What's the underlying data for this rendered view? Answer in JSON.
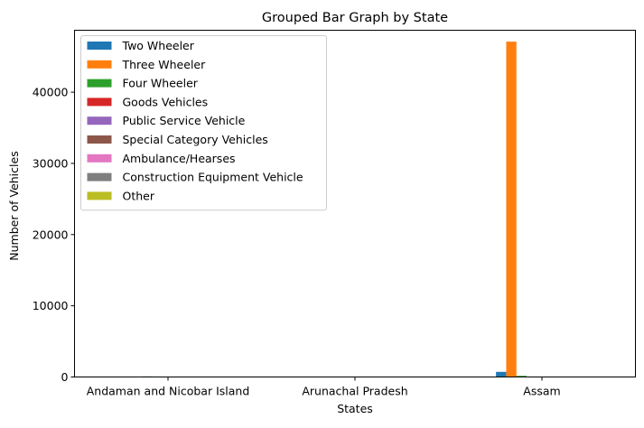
{
  "chart_data": {
    "type": "bar",
    "title": "Grouped Bar Graph by State",
    "xlabel": "States",
    "ylabel": "Number of Vehicles",
    "categories": [
      "Andaman and Nicobar Island",
      "Arunachal Pradesh",
      "Assam"
    ],
    "ylim": [
      0,
      48700
    ],
    "yticks": [
      0,
      10000,
      20000,
      30000,
      40000
    ],
    "legend_position": "top-left",
    "grid": false,
    "series": [
      {
        "name": "Two Wheeler",
        "color": "#1f77b4",
        "values": [
          1,
          14,
          720
        ]
      },
      {
        "name": "Three Wheeler",
        "color": "#ff7f0e",
        "values": [
          30,
          0,
          47100
        ]
      },
      {
        "name": "Four Wheeler",
        "color": "#2ca02c",
        "values": [
          81,
          5,
          161
        ]
      },
      {
        "name": "Goods Vehicles",
        "color": "#d62728",
        "values": [
          0,
          0,
          7
        ]
      },
      {
        "name": "Public Service Vehicle",
        "color": "#9467bd",
        "values": [
          40,
          0,
          15
        ]
      },
      {
        "name": "Special Category Vehicles",
        "color": "#8c564b",
        "values": [
          0,
          0,
          0
        ]
      },
      {
        "name": "Ambulance/Hearses",
        "color": "#e377c2",
        "values": [
          0,
          0,
          0
        ]
      },
      {
        "name": "Construction Equipment Vehicle",
        "color": "#7f7f7f",
        "values": [
          0,
          0,
          0
        ]
      },
      {
        "name": "Other",
        "color": "#bcbd22",
        "values": [
          0,
          0,
          0
        ]
      }
    ]
  }
}
